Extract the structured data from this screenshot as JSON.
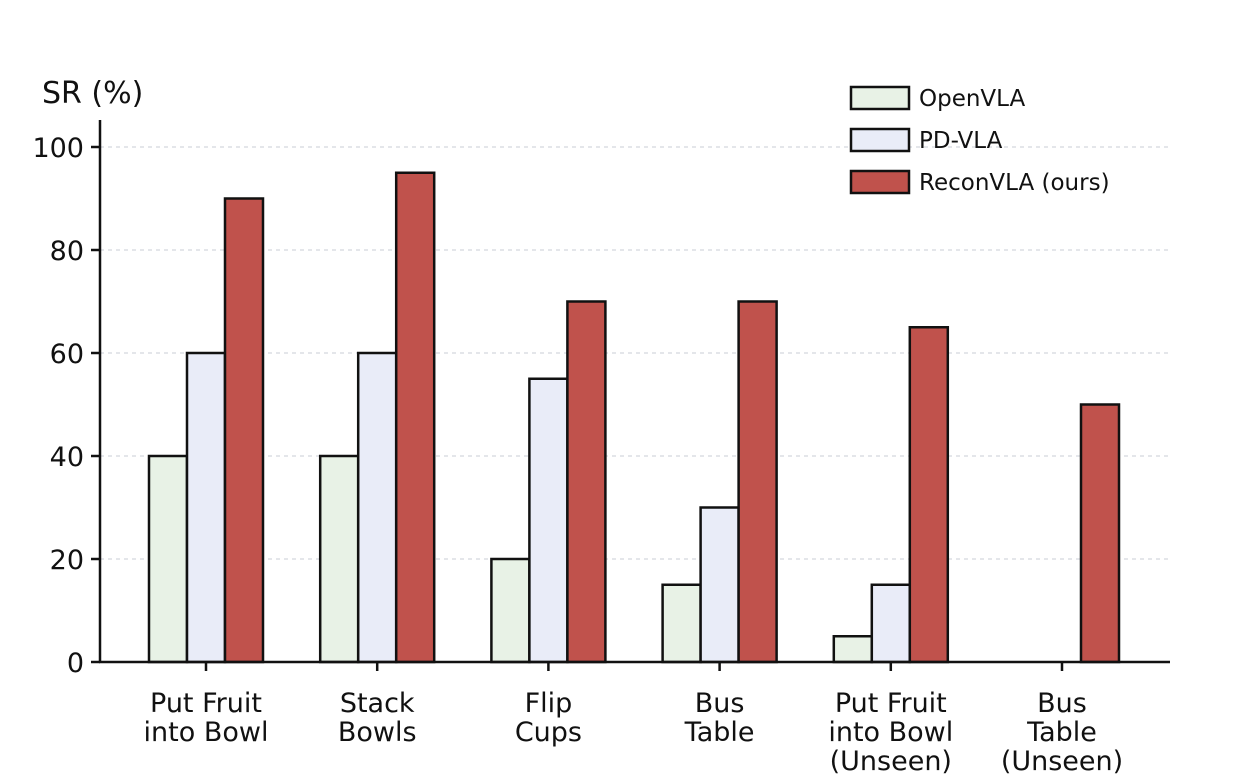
{
  "chart_data": {
    "type": "bar",
    "title": "",
    "xlabel": "",
    "ylabel": "SR (%)",
    "ylim": [
      0,
      100
    ],
    "yticks": [
      0,
      20,
      40,
      60,
      80,
      100
    ],
    "grid": true,
    "legend_position": "top-right",
    "categories": [
      [
        "Put Fruit",
        "into Bowl"
      ],
      [
        "Stack",
        "Bowls"
      ],
      [
        "Flip",
        "Cups"
      ],
      [
        "Bus",
        "Table"
      ],
      [
        "Put Fruit",
        "into Bowl",
        "(Unseen)"
      ],
      [
        "Bus",
        "Table",
        "(Unseen)"
      ]
    ],
    "series": [
      {
        "name": "OpenVLA",
        "color": "#e8f2e6",
        "values": [
          40,
          40,
          20,
          15,
          5,
          0
        ]
      },
      {
        "name": "PD-VLA",
        "color": "#e9ecf8",
        "values": [
          60,
          60,
          55,
          30,
          15,
          0
        ]
      },
      {
        "name": "ReconVLA (ours)",
        "color": "#c0524c",
        "values": [
          90,
          95,
          70,
          70,
          65,
          50
        ]
      }
    ]
  }
}
